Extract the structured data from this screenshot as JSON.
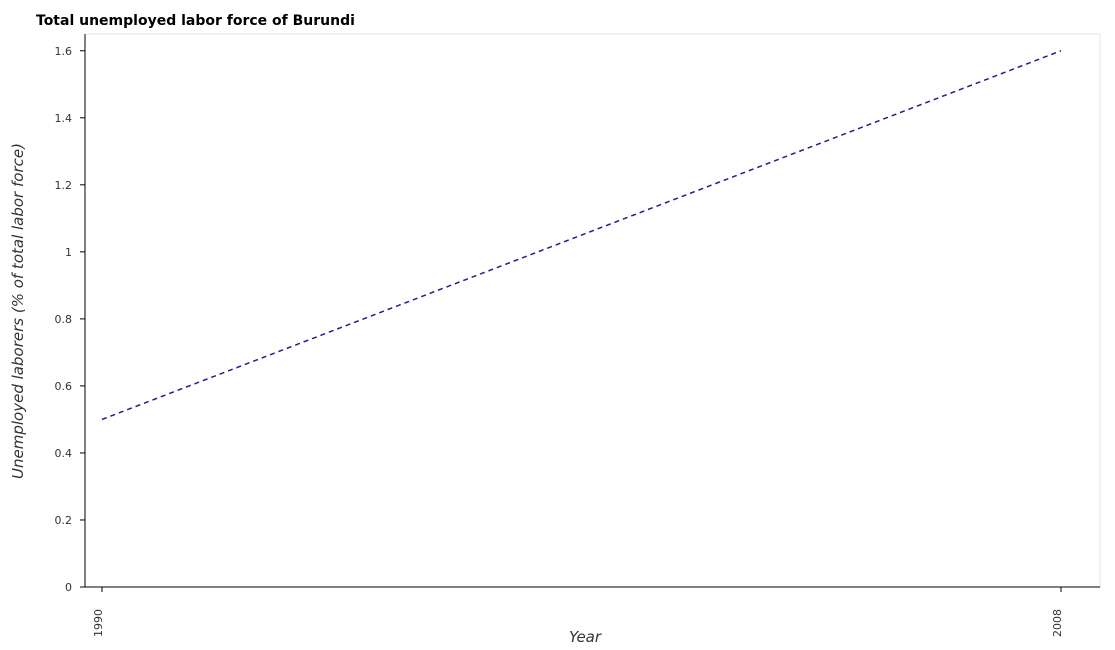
{
  "chart_data": {
    "type": "line",
    "title": "Total unemployed labor force of Burundi",
    "xlabel": "Year",
    "ylabel": "Unemployed laborers (% of total labor force)",
    "categories": [
      "1990",
      "2008"
    ],
    "series": [
      {
        "values": [
          0.5,
          1.6
        ],
        "color": "#1f1f8f",
        "line_style": "dashed"
      }
    ],
    "ylim": [
      0,
      1.65
    ],
    "yticks": [
      0,
      0.2,
      0.4,
      0.6,
      0.8,
      1,
      1.2,
      1.4,
      1.6
    ],
    "ytick_labels": [
      "0",
      "0.2",
      "0.4",
      "0.6",
      "0.8",
      "1",
      "1.2",
      "1.4",
      "1.6"
    ],
    "grid": false,
    "legend": "none"
  }
}
